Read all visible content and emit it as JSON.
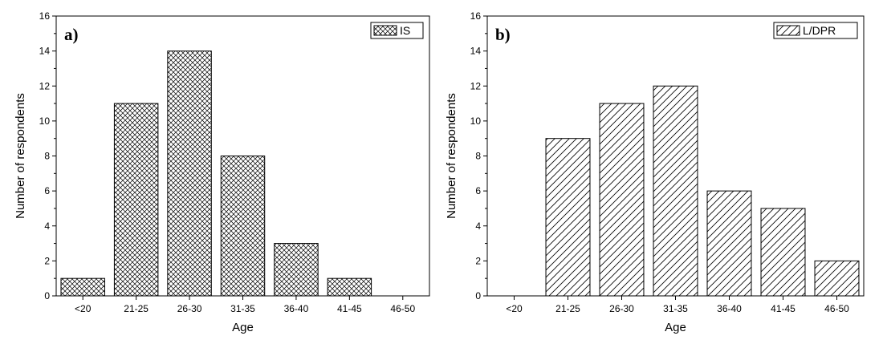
{
  "chart_data": [
    {
      "type": "bar",
      "panel_label": "a)",
      "categories": [
        "<20",
        "21-25",
        "26-30",
        "31-35",
        "36-40",
        "41-45",
        "46-50"
      ],
      "series": [
        {
          "name": "IS",
          "values": [
            1,
            11,
            14,
            8,
            3,
            1,
            0
          ]
        }
      ],
      "xlabel": "Age",
      "ylabel": "Number of respondents",
      "ylim": [
        0,
        16
      ],
      "yticks": [
        0,
        2,
        4,
        6,
        8,
        10,
        12,
        14,
        16
      ],
      "pattern": "crosshatch",
      "legend_position": "top-right",
      "grid": false
    },
    {
      "type": "bar",
      "panel_label": "b)",
      "categories": [
        "<20",
        "21-25",
        "26-30",
        "31-35",
        "36-40",
        "41-45",
        "46-50"
      ],
      "series": [
        {
          "name": "L/DPR",
          "values": [
            0,
            9,
            11,
            12,
            6,
            5,
            2
          ]
        }
      ],
      "xlabel": "Age",
      "ylabel": "Number of respondents",
      "ylim": [
        0,
        16
      ],
      "yticks": [
        0,
        2,
        4,
        6,
        8,
        10,
        12,
        14,
        16
      ],
      "pattern": "diagonal",
      "legend_position": "top-right",
      "grid": false
    }
  ]
}
